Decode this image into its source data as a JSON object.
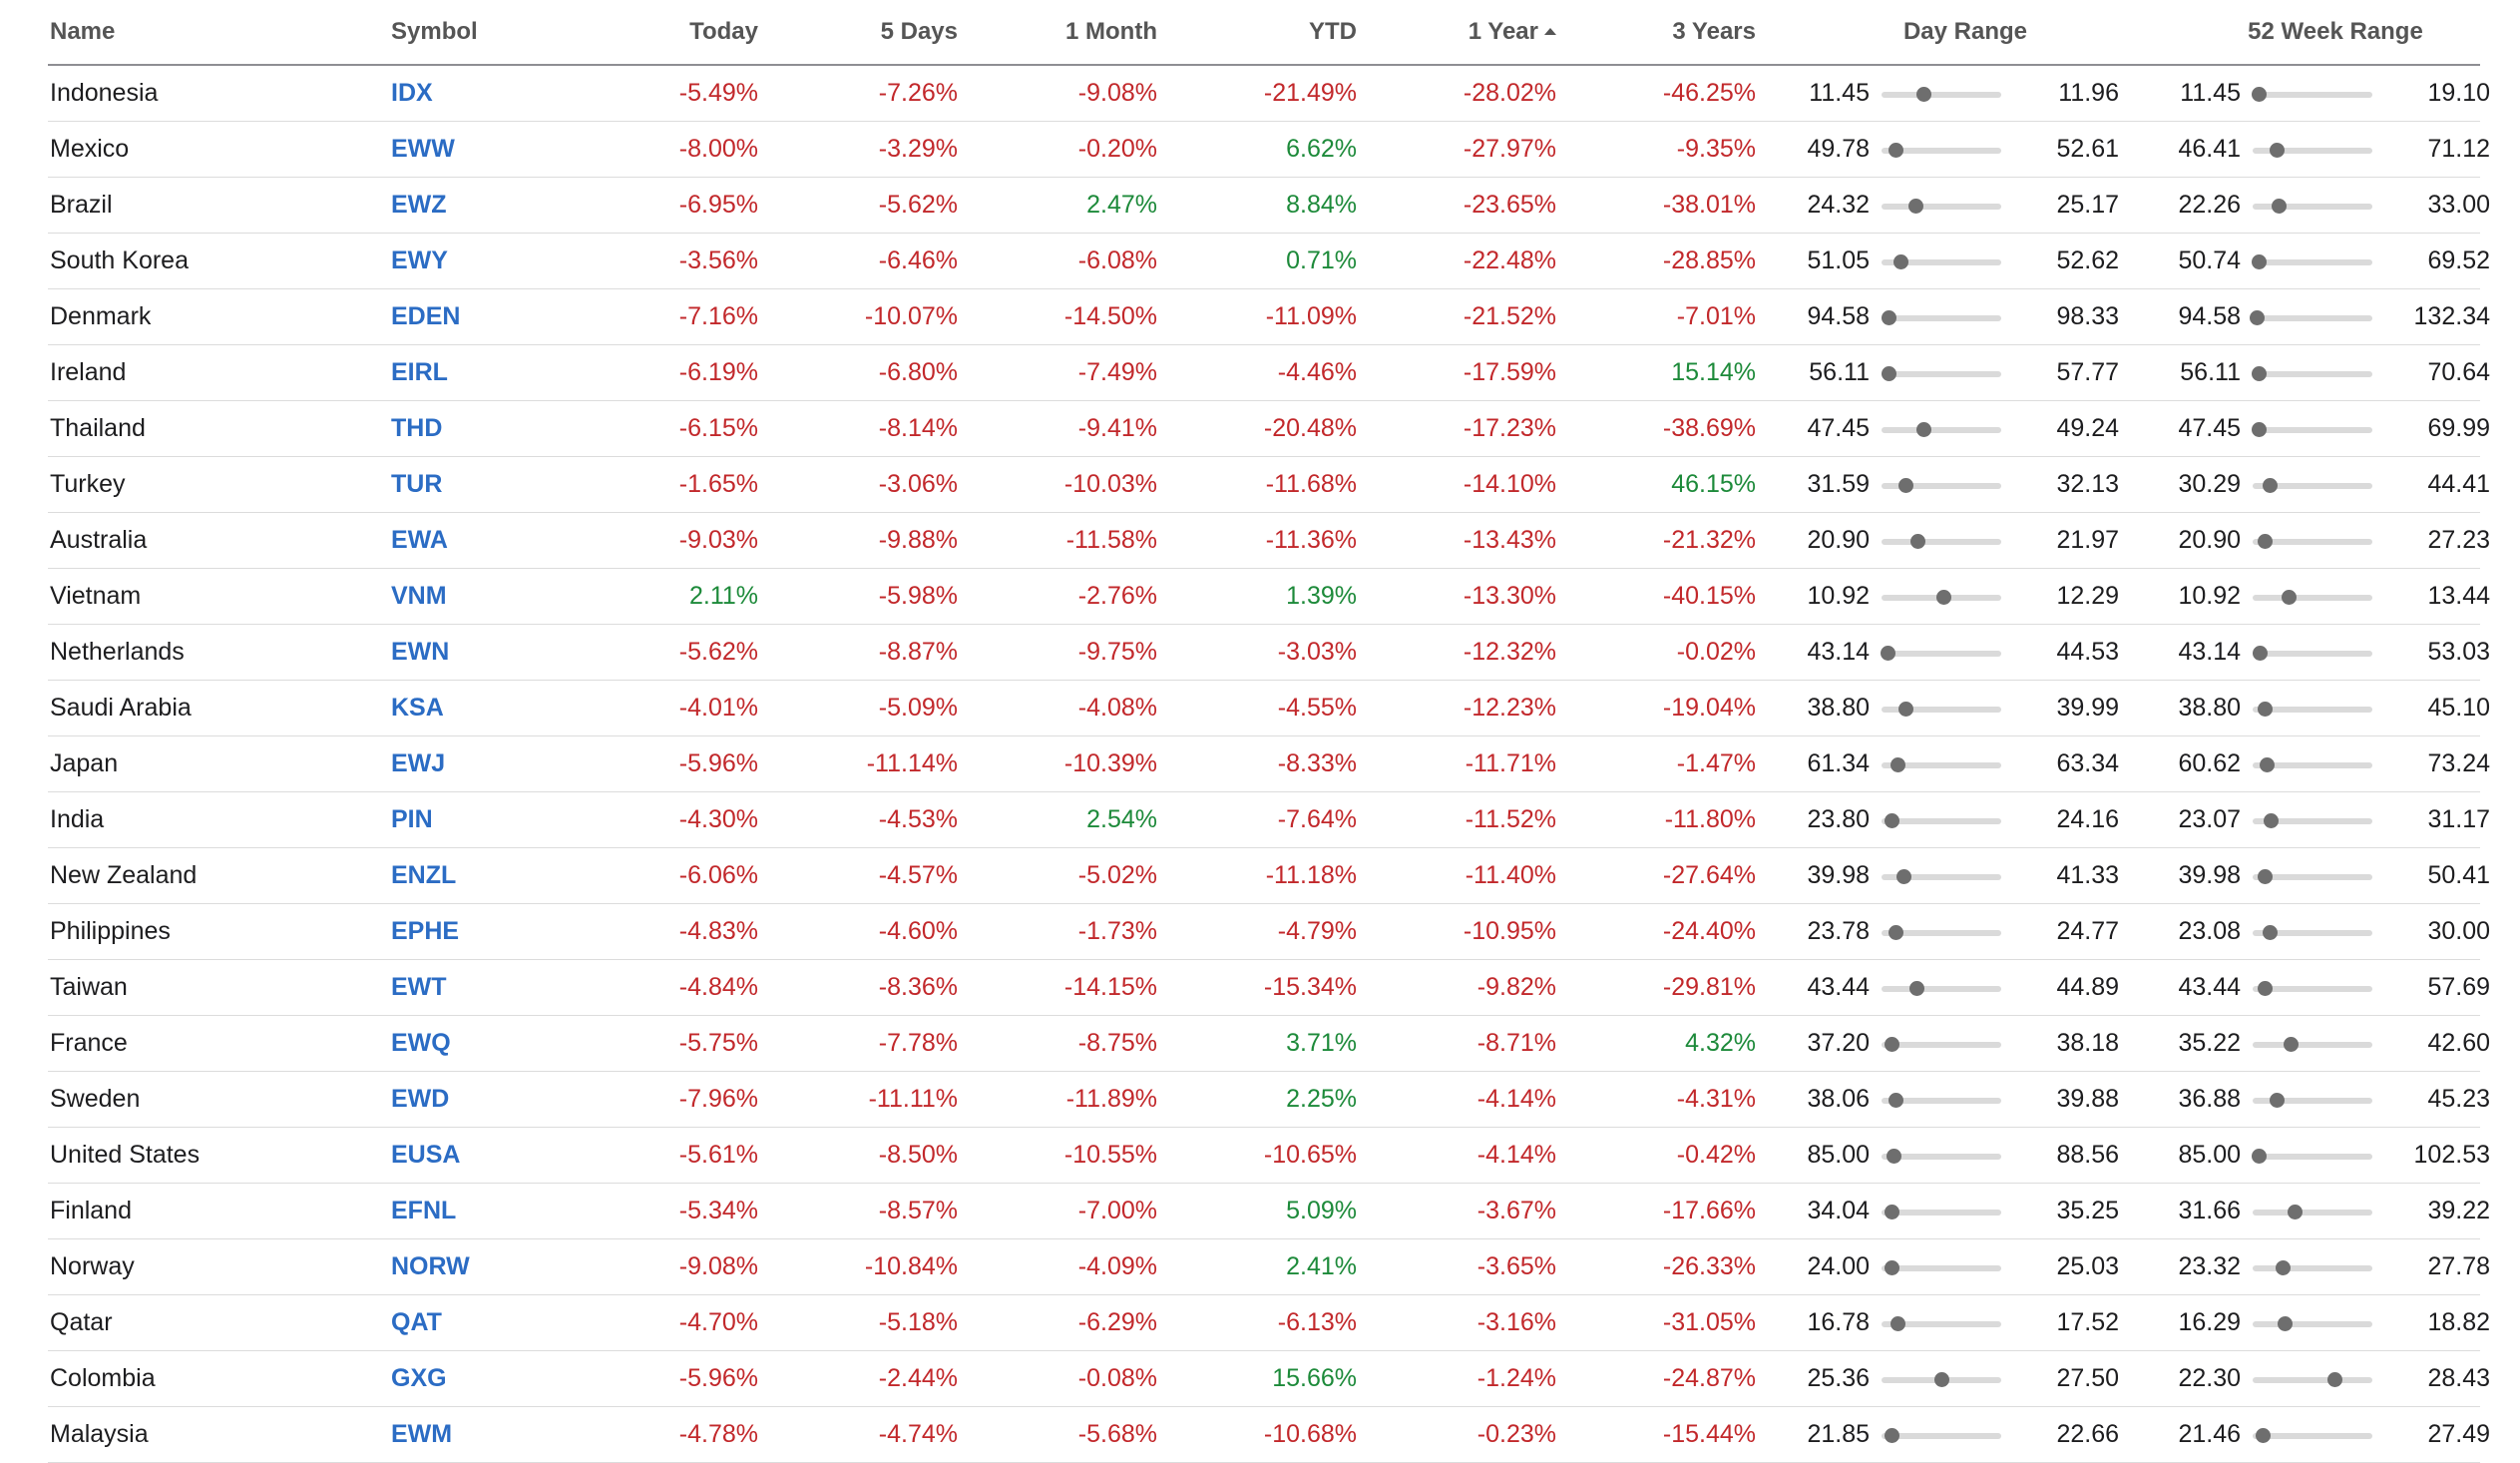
{
  "headers": {
    "name": "Name",
    "symbol": "Symbol",
    "today": "Today",
    "d5": "5 Days",
    "m1": "1 Month",
    "ytd": "YTD",
    "y1": "1 Year",
    "y3": "3 Years",
    "day_range": "Day Range",
    "wk52_range": "52 Week Range",
    "sort_icon": "sort-ascending-icon"
  },
  "colors": {
    "negative": "#c2282b",
    "positive": "#1d8a3a",
    "link": "#2b6cc4"
  },
  "rows": [
    {
      "name": "Indonesia",
      "symbol": "IDX",
      "today": "-5.49%",
      "d5": "-7.26%",
      "m1": "-9.08%",
      "ytd": "-21.49%",
      "y1": "-28.02%",
      "y3": "-46.25%",
      "day_low": "11.45",
      "day_high": "11.96",
      "day_pos": 0.35,
      "wk_low": "11.45",
      "wk_high": "19.10",
      "wk_pos": 0.05
    },
    {
      "name": "Mexico",
      "symbol": "EWW",
      "today": "-8.00%",
      "d5": "-3.29%",
      "m1": "-0.20%",
      "ytd": "6.62%",
      "y1": "-27.97%",
      "y3": "-9.35%",
      "day_low": "49.78",
      "day_high": "52.61",
      "day_pos": 0.12,
      "wk_low": "46.41",
      "wk_high": "71.12",
      "wk_pos": 0.2
    },
    {
      "name": "Brazil",
      "symbol": "EWZ",
      "today": "-6.95%",
      "d5": "-5.62%",
      "m1": "2.47%",
      "ytd": "8.84%",
      "y1": "-23.65%",
      "y3": "-38.01%",
      "day_low": "24.32",
      "day_high": "25.17",
      "day_pos": 0.28,
      "wk_low": "22.26",
      "wk_high": "33.00",
      "wk_pos": 0.22
    },
    {
      "name": "South Korea",
      "symbol": "EWY",
      "today": "-3.56%",
      "d5": "-6.46%",
      "m1": "-6.08%",
      "ytd": "0.71%",
      "y1": "-22.48%",
      "y3": "-28.85%",
      "day_low": "51.05",
      "day_high": "52.62",
      "day_pos": 0.16,
      "wk_low": "50.74",
      "wk_high": "69.52",
      "wk_pos": 0.05
    },
    {
      "name": "Denmark",
      "symbol": "EDEN",
      "today": "-7.16%",
      "d5": "-10.07%",
      "m1": "-14.50%",
      "ytd": "-11.09%",
      "y1": "-21.52%",
      "y3": "-7.01%",
      "day_low": "94.58",
      "day_high": "98.33",
      "day_pos": 0.06,
      "wk_low": "94.58",
      "wk_high": "132.34",
      "wk_pos": 0.03
    },
    {
      "name": "Ireland",
      "symbol": "EIRL",
      "today": "-6.19%",
      "d5": "-6.80%",
      "m1": "-7.49%",
      "ytd": "-4.46%",
      "y1": "-17.59%",
      "y3": "15.14%",
      "day_low": "56.11",
      "day_high": "57.77",
      "day_pos": 0.06,
      "wk_low": "56.11",
      "wk_high": "70.64",
      "wk_pos": 0.05
    },
    {
      "name": "Thailand",
      "symbol": "THD",
      "today": "-6.15%",
      "d5": "-8.14%",
      "m1": "-9.41%",
      "ytd": "-20.48%",
      "y1": "-17.23%",
      "y3": "-38.69%",
      "day_low": "47.45",
      "day_high": "49.24",
      "day_pos": 0.35,
      "wk_low": "47.45",
      "wk_high": "69.99",
      "wk_pos": 0.05
    },
    {
      "name": "Turkey",
      "symbol": "TUR",
      "today": "-1.65%",
      "d5": "-3.06%",
      "m1": "-10.03%",
      "ytd": "-11.68%",
      "y1": "-14.10%",
      "y3": "46.15%",
      "day_low": "31.59",
      "day_high": "32.13",
      "day_pos": 0.2,
      "wk_low": "30.29",
      "wk_high": "44.41",
      "wk_pos": 0.14
    },
    {
      "name": "Australia",
      "symbol": "EWA",
      "today": "-9.03%",
      "d5": "-9.88%",
      "m1": "-11.58%",
      "ytd": "-11.36%",
      "y1": "-13.43%",
      "y3": "-21.32%",
      "day_low": "20.90",
      "day_high": "21.97",
      "day_pos": 0.3,
      "wk_low": "20.90",
      "wk_high": "27.23",
      "wk_pos": 0.1
    },
    {
      "name": "Vietnam",
      "symbol": "VNM",
      "today": "2.11%",
      "d5": "-5.98%",
      "m1": "-2.76%",
      "ytd": "1.39%",
      "y1": "-13.30%",
      "y3": "-40.15%",
      "day_low": "10.92",
      "day_high": "12.29",
      "day_pos": 0.52,
      "wk_low": "10.92",
      "wk_high": "13.44",
      "wk_pos": 0.3
    },
    {
      "name": "Netherlands",
      "symbol": "EWN",
      "today": "-5.62%",
      "d5": "-8.87%",
      "m1": "-9.75%",
      "ytd": "-3.03%",
      "y1": "-12.32%",
      "y3": "-0.02%",
      "day_low": "43.14",
      "day_high": "44.53",
      "day_pos": 0.05,
      "wk_low": "43.14",
      "wk_high": "53.03",
      "wk_pos": 0.06
    },
    {
      "name": "Saudi Arabia",
      "symbol": "KSA",
      "today": "-4.01%",
      "d5": "-5.09%",
      "m1": "-4.08%",
      "ytd": "-4.55%",
      "y1": "-12.23%",
      "y3": "-19.04%",
      "day_low": "38.80",
      "day_high": "39.99",
      "day_pos": 0.2,
      "wk_low": "38.80",
      "wk_high": "45.10",
      "wk_pos": 0.1
    },
    {
      "name": "Japan",
      "symbol": "EWJ",
      "today": "-5.96%",
      "d5": "-11.14%",
      "m1": "-10.39%",
      "ytd": "-8.33%",
      "y1": "-11.71%",
      "y3": "-1.47%",
      "day_low": "61.34",
      "day_high": "63.34",
      "day_pos": 0.13,
      "wk_low": "60.62",
      "wk_high": "73.24",
      "wk_pos": 0.12
    },
    {
      "name": "India",
      "symbol": "PIN",
      "today": "-4.30%",
      "d5": "-4.53%",
      "m1": "2.54%",
      "ytd": "-7.64%",
      "y1": "-11.52%",
      "y3": "-11.80%",
      "day_low": "23.80",
      "day_high": "24.16",
      "day_pos": 0.08,
      "wk_low": "23.07",
      "wk_high": "31.17",
      "wk_pos": 0.15
    },
    {
      "name": "New Zealand",
      "symbol": "ENZL",
      "today": "-6.06%",
      "d5": "-4.57%",
      "m1": "-5.02%",
      "ytd": "-11.18%",
      "y1": "-11.40%",
      "y3": "-27.64%",
      "day_low": "39.98",
      "day_high": "41.33",
      "day_pos": 0.18,
      "wk_low": "39.98",
      "wk_high": "50.41",
      "wk_pos": 0.1
    },
    {
      "name": "Philippines",
      "symbol": "EPHE",
      "today": "-4.83%",
      "d5": "-4.60%",
      "m1": "-1.73%",
      "ytd": "-4.79%",
      "y1": "-10.95%",
      "y3": "-24.40%",
      "day_low": "23.78",
      "day_high": "24.77",
      "day_pos": 0.12,
      "wk_low": "23.08",
      "wk_high": "30.00",
      "wk_pos": 0.14
    },
    {
      "name": "Taiwan",
      "symbol": "EWT",
      "today": "-4.84%",
      "d5": "-8.36%",
      "m1": "-14.15%",
      "ytd": "-15.34%",
      "y1": "-9.82%",
      "y3": "-29.81%",
      "day_low": "43.44",
      "day_high": "44.89",
      "day_pos": 0.29,
      "wk_low": "43.44",
      "wk_high": "57.69",
      "wk_pos": 0.1
    },
    {
      "name": "France",
      "symbol": "EWQ",
      "today": "-5.75%",
      "d5": "-7.78%",
      "m1": "-8.75%",
      "ytd": "3.71%",
      "y1": "-8.71%",
      "y3": "4.32%",
      "day_low": "37.20",
      "day_high": "38.18",
      "day_pos": 0.08,
      "wk_low": "35.22",
      "wk_high": "42.60",
      "wk_pos": 0.32
    },
    {
      "name": "Sweden",
      "symbol": "EWD",
      "today": "-7.96%",
      "d5": "-11.11%",
      "m1": "-11.89%",
      "ytd": "2.25%",
      "y1": "-4.14%",
      "y3": "-4.31%",
      "day_low": "38.06",
      "day_high": "39.88",
      "day_pos": 0.12,
      "wk_low": "36.88",
      "wk_high": "45.23",
      "wk_pos": 0.2
    },
    {
      "name": "United States",
      "symbol": "EUSA",
      "today": "-5.61%",
      "d5": "-8.50%",
      "m1": "-10.55%",
      "ytd": "-10.65%",
      "y1": "-4.14%",
      "y3": "-0.42%",
      "day_low": "85.00",
      "day_high": "88.56",
      "day_pos": 0.1,
      "wk_low": "85.00",
      "wk_high": "102.53",
      "wk_pos": 0.05
    },
    {
      "name": "Finland",
      "symbol": "EFNL",
      "today": "-5.34%",
      "d5": "-8.57%",
      "m1": "-7.00%",
      "ytd": "5.09%",
      "y1": "-3.67%",
      "y3": "-17.66%",
      "day_low": "34.04",
      "day_high": "35.25",
      "day_pos": 0.08,
      "wk_low": "31.66",
      "wk_high": "39.22",
      "wk_pos": 0.35
    },
    {
      "name": "Norway",
      "symbol": "NORW",
      "today": "-9.08%",
      "d5": "-10.84%",
      "m1": "-4.09%",
      "ytd": "2.41%",
      "y1": "-3.65%",
      "y3": "-26.33%",
      "day_low": "24.00",
      "day_high": "25.03",
      "day_pos": 0.08,
      "wk_low": "23.32",
      "wk_high": "27.78",
      "wk_pos": 0.25
    },
    {
      "name": "Qatar",
      "symbol": "QAT",
      "today": "-4.70%",
      "d5": "-5.18%",
      "m1": "-6.29%",
      "ytd": "-6.13%",
      "y1": "-3.16%",
      "y3": "-31.05%",
      "day_low": "16.78",
      "day_high": "17.52",
      "day_pos": 0.13,
      "wk_low": "16.29",
      "wk_high": "18.82",
      "wk_pos": 0.27
    },
    {
      "name": "Colombia",
      "symbol": "GXG",
      "today": "-5.96%",
      "d5": "-2.44%",
      "m1": "-0.08%",
      "ytd": "15.66%",
      "y1": "-1.24%",
      "y3": "-24.87%",
      "day_low": "25.36",
      "day_high": "27.50",
      "day_pos": 0.5,
      "wk_low": "22.30",
      "wk_high": "28.43",
      "wk_pos": 0.68
    },
    {
      "name": "Malaysia",
      "symbol": "EWM",
      "today": "-4.78%",
      "d5": "-4.74%",
      "m1": "-5.68%",
      "ytd": "-10.68%",
      "y1": "-0.23%",
      "y3": "-15.44%",
      "day_low": "21.85",
      "day_high": "22.66",
      "day_pos": 0.08,
      "wk_low": "21.46",
      "wk_high": "27.49",
      "wk_pos": 0.08
    }
  ]
}
